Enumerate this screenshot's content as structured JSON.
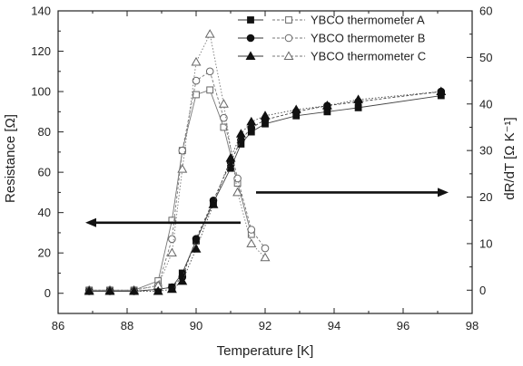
{
  "chart_data": {
    "type": "scatter",
    "xlabel": "Temperature [K]",
    "ylabel_left": "Resistance [Ω]",
    "ylabel_right": "dR/dT [Ω K⁻¹]",
    "xlim": [
      86,
      98
    ],
    "ylim_left": [
      -10,
      140
    ],
    "ylim_right": [
      -5,
      60
    ],
    "x_ticks": [
      86,
      88,
      90,
      92,
      94,
      96,
      98
    ],
    "y_left_ticks": [
      0,
      20,
      40,
      60,
      80,
      100,
      120,
      140
    ],
    "y_right_ticks": [
      0,
      10,
      20,
      30,
      40,
      50,
      60
    ],
    "legend_position": "top-right",
    "annotations": [
      {
        "type": "arrow",
        "direction": "left",
        "meaning": "resistance axis (left)"
      },
      {
        "type": "arrow",
        "direction": "right",
        "meaning": "dR/dT axis (right)"
      }
    ],
    "series": [
      {
        "name": "YBCO thermometer A",
        "marker": "square",
        "resistance": {
          "x": [
            86.9,
            87.5,
            88.2,
            88.9,
            89.3,
            89.6,
            90.0,
            90.5,
            91.0,
            91.3,
            91.6,
            92.0,
            92.9,
            93.8,
            94.7,
            97.1
          ],
          "y": [
            1,
            1,
            1,
            2,
            3,
            10,
            26,
            45,
            62,
            74,
            80,
            84,
            88,
            90,
            92,
            98
          ]
        },
        "derivative": {
          "x": [
            86.9,
            87.5,
            88.2,
            88.9,
            89.3,
            89.6,
            90.0,
            90.4,
            90.8,
            91.2,
            91.6
          ],
          "y": [
            0,
            0,
            0,
            2,
            15,
            30,
            42,
            43,
            35,
            23,
            12
          ]
        }
      },
      {
        "name": "YBCO thermometer B",
        "marker": "circle",
        "resistance": {
          "x": [
            86.9,
            87.5,
            88.2,
            88.9,
            89.3,
            89.6,
            90.0,
            90.5,
            91.0,
            91.3,
            91.6,
            92.0,
            92.9,
            93.8,
            94.7,
            97.1
          ],
          "y": [
            1,
            1,
            1,
            2,
            3,
            8,
            27,
            46,
            65,
            76,
            82,
            86,
            90,
            93,
            95,
            100
          ]
        },
        "derivative": {
          "x": [
            86.9,
            87.5,
            88.2,
            88.9,
            89.3,
            89.6,
            90.0,
            90.4,
            90.8,
            91.2,
            91.6,
            92.0
          ],
          "y": [
            0,
            0,
            0,
            1,
            11,
            30,
            45,
            47,
            37,
            24,
            13,
            9
          ]
        }
      },
      {
        "name": "YBCO thermometer C",
        "marker": "triangle",
        "resistance": {
          "x": [
            86.9,
            87.5,
            88.2,
            88.9,
            89.3,
            89.6,
            90.0,
            90.5,
            91.0,
            91.3,
            91.6,
            92.0,
            92.9,
            93.8,
            94.7,
            97.1
          ],
          "y": [
            1,
            1,
            1,
            1,
            2,
            6,
            22,
            44,
            67,
            79,
            85,
            88,
            91,
            93,
            96,
            100
          ]
        },
        "derivative": {
          "x": [
            86.9,
            87.5,
            88.2,
            88.9,
            89.3,
            89.6,
            90.0,
            90.4,
            90.8,
            91.2,
            91.6,
            92.0
          ],
          "y": [
            0,
            0,
            0,
            1,
            8,
            26,
            49,
            55,
            40,
            21,
            10,
            7
          ]
        }
      }
    ]
  }
}
